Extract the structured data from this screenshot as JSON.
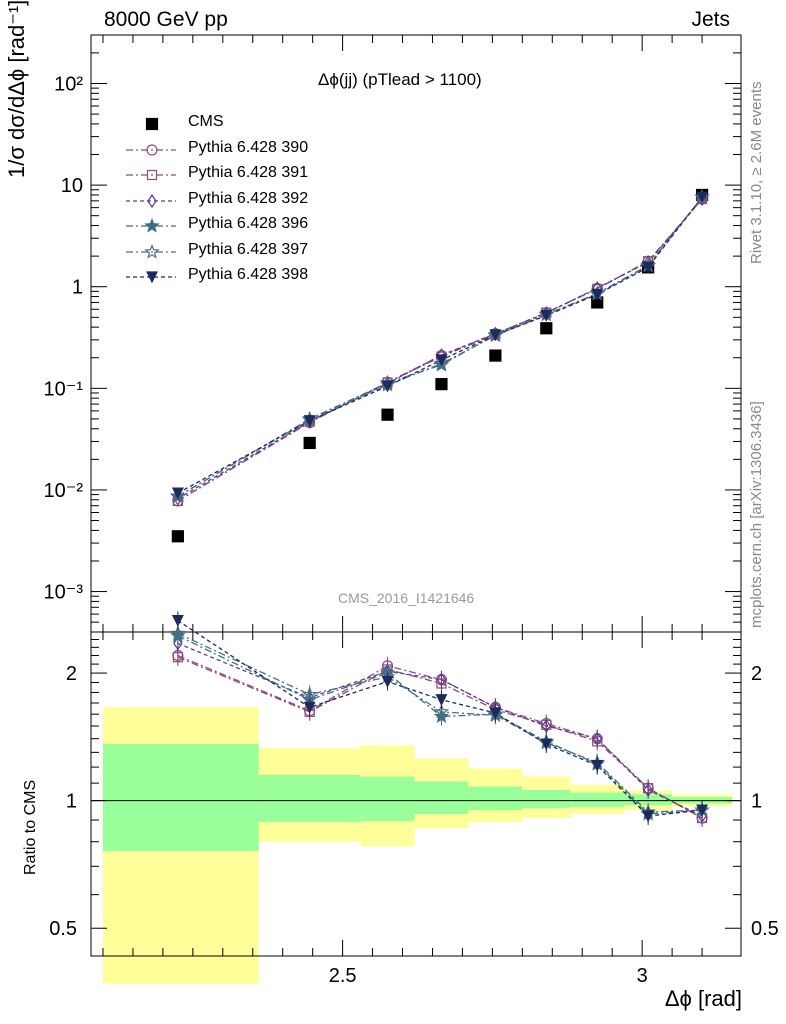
{
  "header": {
    "left": "8000 GeV pp",
    "right": "Jets"
  },
  "side_text": {
    "rivet": "Rivet 3.1.10, ≥ 2.6M events",
    "source": "mcplots.cern.ch [arXiv:1306.3436]"
  },
  "watermark": "CMS_2016_I1421646",
  "labels": {
    "y_top": "1/σ dσ/dΔϕ [rad⁻¹]",
    "y_bottom": "Ratio to CMS",
    "x": "Δϕ [rad]",
    "plot_title": "Δϕ(jj) (pTlead >  1100)"
  },
  "colors": {
    "data": "#000000",
    "band_stat": "#99ff99",
    "band_total": "#ffff99"
  },
  "chart_data": [
    {
      "type": "scatter",
      "panel": "main",
      "yscale": "log",
      "xlim": [
        2.08,
        3.165
      ],
      "ylim": [
        0.0004,
        300
      ],
      "y_ticks": [
        "10⁻³",
        "10⁻²",
        "10⁻¹",
        "1",
        "10",
        "10²"
      ],
      "x": [
        2.225,
        2.445,
        2.575,
        2.665,
        2.755,
        2.84,
        2.925,
        3.01,
        3.1
      ],
      "series": [
        {
          "name": "CMS",
          "color": "#000000",
          "marker": "square",
          "values": [
            0.0035,
            0.029,
            0.055,
            0.11,
            0.21,
            0.39,
            0.7,
            1.55,
            8.0
          ]
        },
        {
          "name": "Pythia 6.428 390",
          "color": "#8e4d8e",
          "marker": "circle",
          "values": [
            0.0078,
            0.046,
            0.115,
            0.21,
            0.345,
            0.555,
            0.96,
            1.78,
            7.3
          ]
        },
        {
          "name": "Pythia 6.428 391",
          "color": "#8e4d70",
          "marker": "square-open",
          "values": [
            0.0078,
            0.047,
            0.114,
            0.205,
            0.34,
            0.555,
            0.95,
            1.78,
            7.3
          ]
        },
        {
          "name": "Pythia 6.428 392",
          "color": "#5a3d8e",
          "marker": "diamond",
          "values": [
            0.0082,
            0.047,
            0.112,
            0.212,
            0.345,
            0.55,
            0.97,
            1.74,
            7.3
          ]
        },
        {
          "name": "Pythia 6.428 396",
          "color": "#3d6e8a",
          "marker": "star",
          "values": [
            0.0086,
            0.05,
            0.113,
            0.17,
            0.335,
            0.535,
            0.85,
            1.6,
            7.6
          ]
        },
        {
          "name": "Pythia 6.428 397",
          "color": "#4a7080",
          "marker": "star-open",
          "values": [
            0.0087,
            0.049,
            0.108,
            0.175,
            0.33,
            0.53,
            0.86,
            1.62,
            7.6
          ]
        },
        {
          "name": "Pythia 6.428 398",
          "color": "#1c2a60",
          "marker": "triangle-down",
          "values": [
            0.0093,
            0.048,
            0.105,
            0.19,
            0.335,
            0.52,
            0.84,
            1.55,
            7.6
          ]
        }
      ]
    },
    {
      "type": "line",
      "panel": "ratio",
      "yscale": "log",
      "xlim": [
        2.08,
        3.165
      ],
      "ylim": [
        0.43,
        2.5
      ],
      "y_ticks": [
        "0.5",
        "1",
        "2"
      ],
      "x_ticks": [
        "2.5",
        "3"
      ],
      "x": [
        2.225,
        2.445,
        2.575,
        2.665,
        2.755,
        2.84,
        2.925,
        3.01,
        3.1
      ],
      "bands": {
        "edges": [
          2.1,
          2.36,
          2.53,
          2.62,
          2.71,
          2.8,
          2.88,
          2.97,
          3.05,
          3.15
        ],
        "stat_low": [
          0.76,
          0.89,
          0.895,
          0.93,
          0.95,
          0.96,
          0.965,
          0.975,
          0.985
        ],
        "stat_high": [
          1.36,
          1.15,
          1.14,
          1.11,
          1.08,
          1.06,
          1.045,
          1.035,
          1.02
        ],
        "total_low": [
          0.37,
          0.8,
          0.78,
          0.86,
          0.89,
          0.91,
          0.93,
          0.95,
          0.97
        ],
        "total_high": [
          1.66,
          1.33,
          1.35,
          1.26,
          1.19,
          1.14,
          1.09,
          1.055,
          1.035
        ]
      },
      "series": [
        {
          "name": "Pythia 6.428 390",
          "values": [
            2.2,
            1.63,
            2.08,
            1.93,
            1.66,
            1.52,
            1.4,
            1.07,
            0.91
          ]
        },
        {
          "name": "Pythia 6.428 391",
          "values": [
            2.18,
            1.62,
            2.04,
            1.89,
            1.64,
            1.51,
            1.38,
            1.07,
            0.91
          ]
        },
        {
          "name": "Pythia 6.428 392",
          "values": [
            2.35,
            1.75,
            2.02,
            1.93,
            1.66,
            1.5,
            1.4,
            1.06,
            0.92
          ]
        },
        {
          "name": "Pythia 6.428 396",
          "values": [
            2.45,
            1.73,
            2.0,
            1.58,
            1.6,
            1.38,
            1.22,
            0.93,
            0.95
          ]
        },
        {
          "name": "Pythia 6.428 397",
          "values": [
            2.48,
            1.78,
            1.96,
            1.62,
            1.59,
            1.37,
            1.23,
            0.94,
            0.95
          ]
        },
        {
          "name": "Pythia 6.428 398",
          "values": [
            2.66,
            1.66,
            1.91,
            1.73,
            1.61,
            1.36,
            1.21,
            0.92,
            0.95
          ]
        }
      ]
    }
  ]
}
